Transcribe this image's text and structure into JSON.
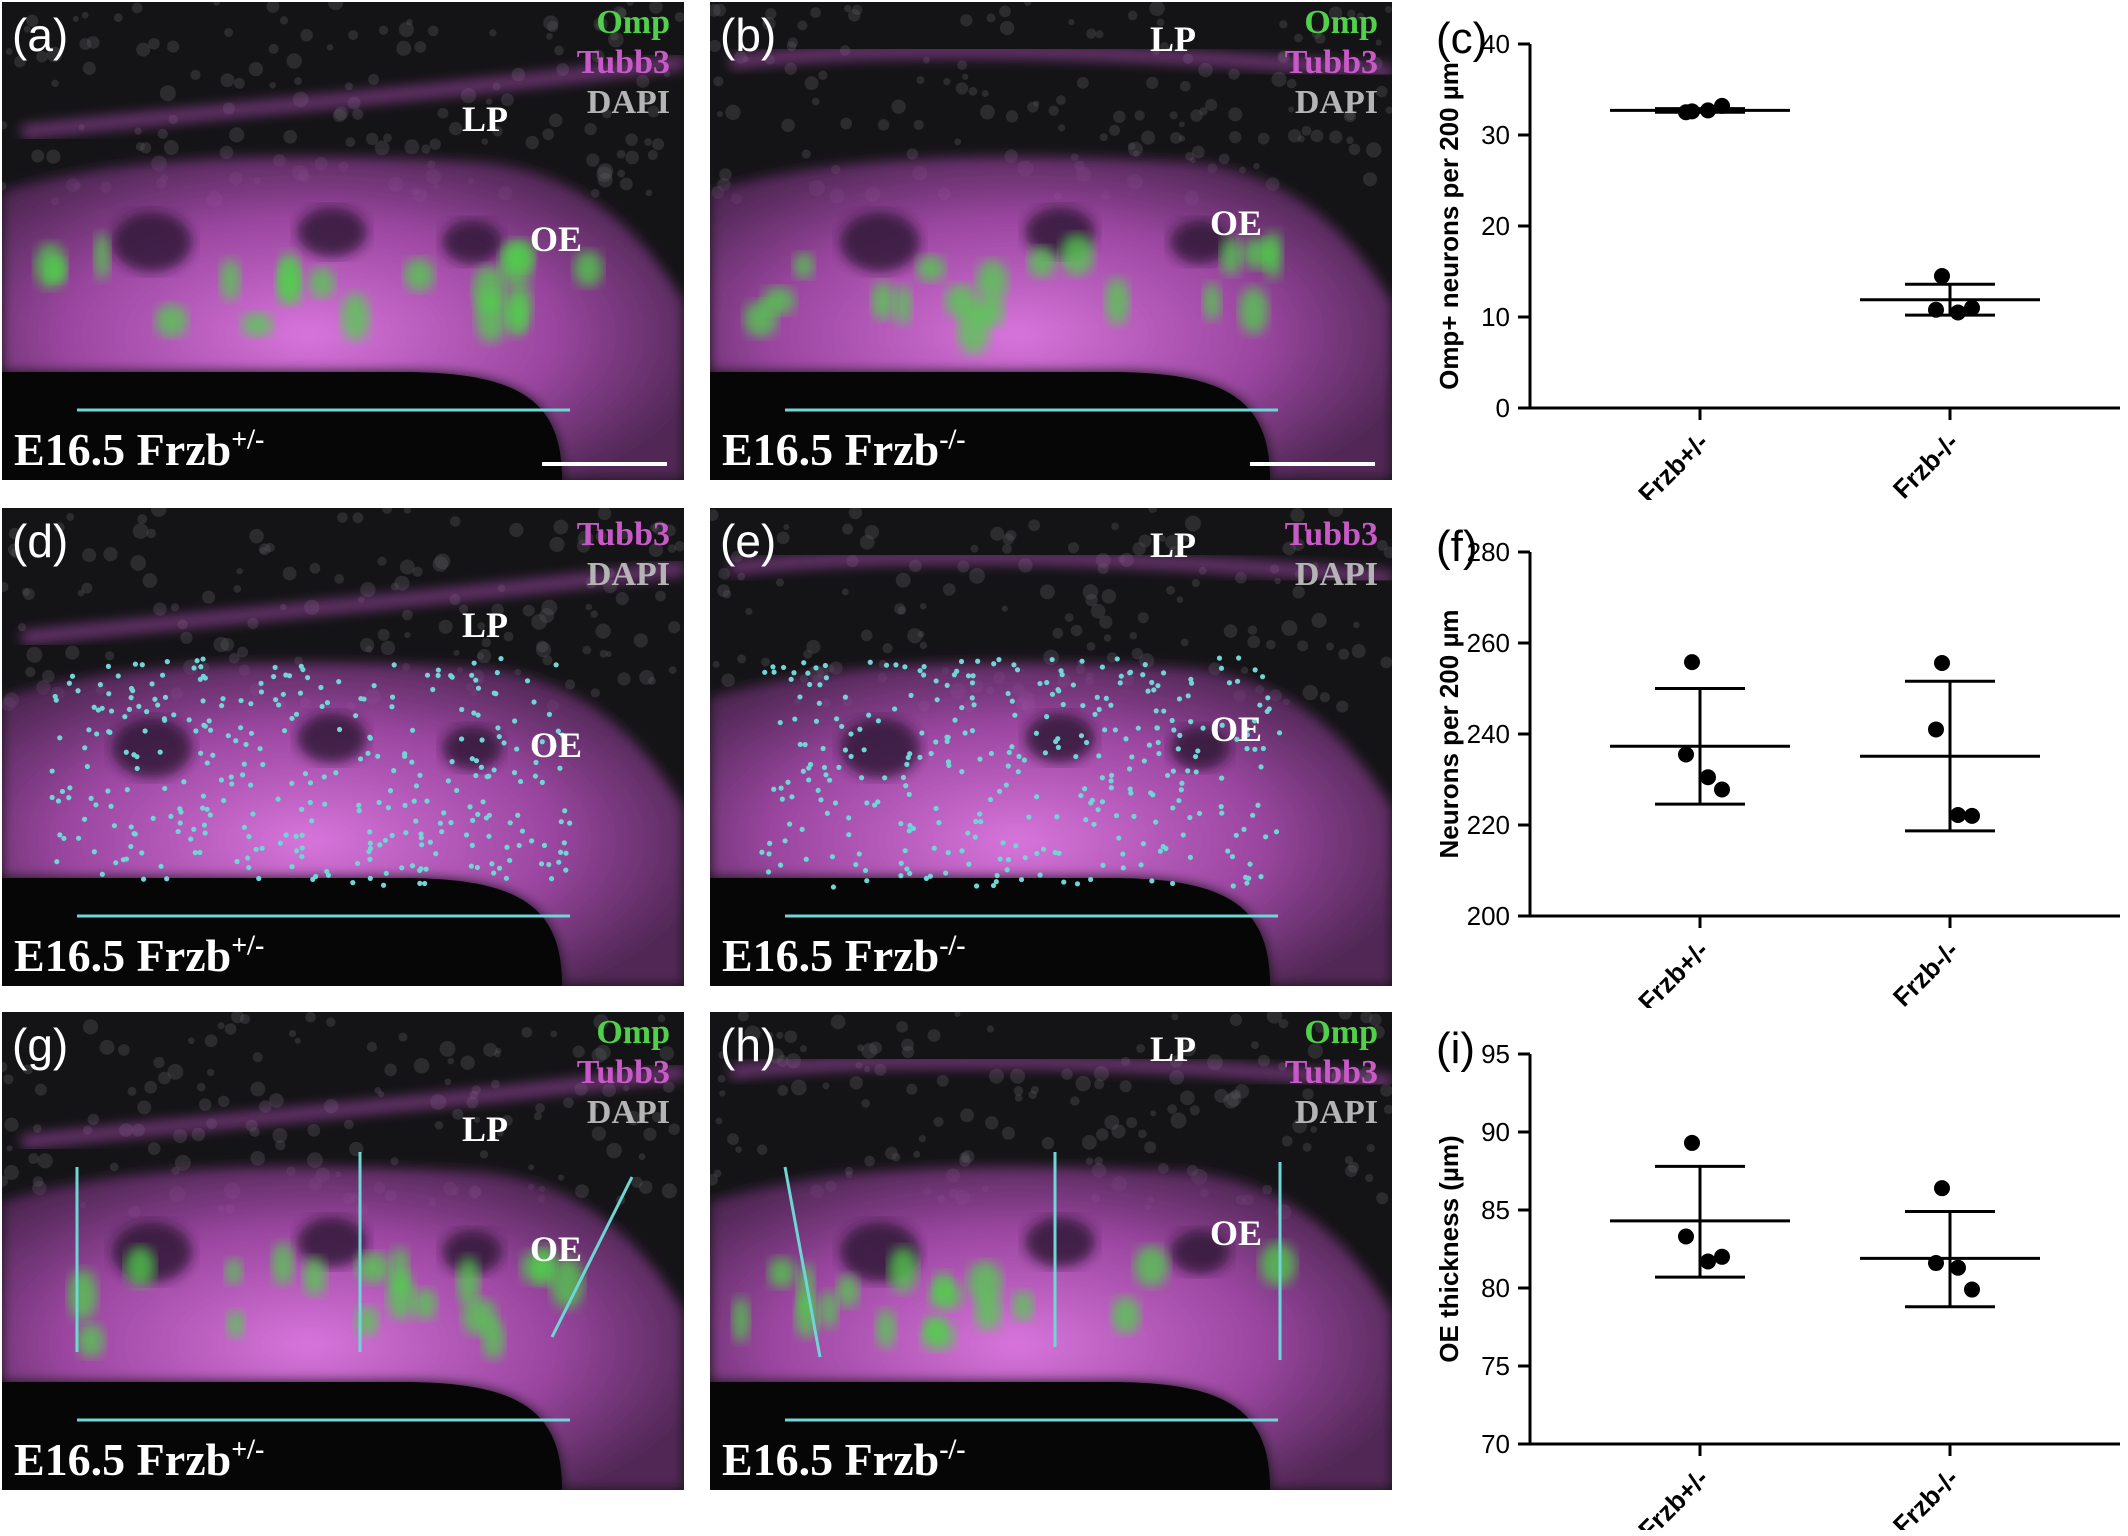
{
  "panels": [
    {
      "label": "(a)",
      "stains": [
        "Omp",
        "Tubb3",
        "DAPI"
      ],
      "genotype_base": "E16.5 Frzb",
      "genotype_sup": "+/-",
      "regions": [
        "LP",
        "OE"
      ],
      "overlay": "none",
      "scalebar": true
    },
    {
      "label": "(b)",
      "stains": [
        "Omp",
        "Tubb3",
        "DAPI"
      ],
      "genotype_base": "E16.5 Frzb",
      "genotype_sup": "-/-",
      "regions": [
        "LP",
        "OE"
      ],
      "overlay": "none",
      "scalebar": true
    },
    {
      "label": "(d)",
      "stains": [
        "Tubb3",
        "DAPI"
      ],
      "genotype_base": "E16.5 Frzb",
      "genotype_sup": "+/-",
      "regions": [
        "LP",
        "OE"
      ],
      "overlay": "dots",
      "scalebar": false
    },
    {
      "label": "(e)",
      "stains": [
        "Tubb3",
        "DAPI"
      ],
      "genotype_base": "E16.5 Frzb",
      "genotype_sup": "-/-",
      "regions": [
        "LP",
        "OE"
      ],
      "overlay": "dots",
      "scalebar": false
    },
    {
      "label": "(g)",
      "stains": [
        "Omp",
        "Tubb3",
        "DAPI"
      ],
      "genotype_base": "E16.5 Frzb",
      "genotype_sup": "+/-",
      "regions": [
        "LP",
        "OE"
      ],
      "overlay": "thickness",
      "scalebar": false
    },
    {
      "label": "(h)",
      "stains": [
        "Omp",
        "Tubb3",
        "DAPI"
      ],
      "genotype_base": "E16.5 Frzb",
      "genotype_sup": "-/-",
      "regions": [
        "LP",
        "OE"
      ],
      "overlay": "thickness",
      "scalebar": false
    }
  ],
  "colors": {
    "omp": "#4fd14a",
    "tubb3": "#c85ac8",
    "dapi": "#b4b4b4",
    "measure": "#6fd6d6"
  },
  "chart_data": [
    {
      "label": "(c)",
      "type": "scatter",
      "categories": [
        "Frzb+/-",
        "Frzb-/-"
      ],
      "ylabel": "Omp+ neurons per 200 µm",
      "ylim": [
        0,
        40
      ],
      "yticks": [
        0,
        10,
        20,
        30,
        40
      ],
      "series": [
        {
          "category": "Frzb+/-",
          "points": [
            32.6,
            32.5,
            32.7,
            33.2
          ],
          "mean": 32.7,
          "error": [
            32.5,
            32.9
          ]
        },
        {
          "category": "Frzb-/-",
          "points": [
            14.5,
            10.8,
            10.5,
            11.0
          ],
          "mean": 11.9,
          "error": [
            10.2,
            13.6
          ]
        }
      ]
    },
    {
      "label": "(f)",
      "type": "scatter",
      "categories": [
        "Frzb+/-",
        "Frzb-/-"
      ],
      "ylabel": "Neurons per 200 µm",
      "ylim": [
        200,
        280
      ],
      "yticks": [
        200,
        220,
        240,
        260,
        280
      ],
      "series": [
        {
          "category": "Frzb+/-",
          "points": [
            255.8,
            235.5,
            230.5,
            227.8
          ],
          "mean": 237.3,
          "error": [
            224.6,
            250.0
          ]
        },
        {
          "category": "Frzb-/-",
          "points": [
            255.6,
            241.0,
            222.2,
            222.0
          ],
          "mean": 235.1,
          "error": [
            218.7,
            251.6
          ]
        }
      ]
    },
    {
      "label": "(i)",
      "type": "scatter",
      "categories": [
        "Frzb+/-",
        "Frzb-/-"
      ],
      "ylabel": "OE thickness (µm)",
      "ylim": [
        70,
        95
      ],
      "yticks": [
        70,
        75,
        80,
        85,
        90,
        95
      ],
      "series": [
        {
          "category": "Frzb+/-",
          "points": [
            89.3,
            83.3,
            81.7,
            82.0
          ],
          "mean": 84.3,
          "error": [
            80.7,
            87.8
          ]
        },
        {
          "category": "Frzb-/-",
          "points": [
            86.4,
            81.6,
            81.3,
            79.9
          ],
          "mean": 81.9,
          "error": [
            78.8,
            84.9
          ]
        }
      ]
    }
  ]
}
